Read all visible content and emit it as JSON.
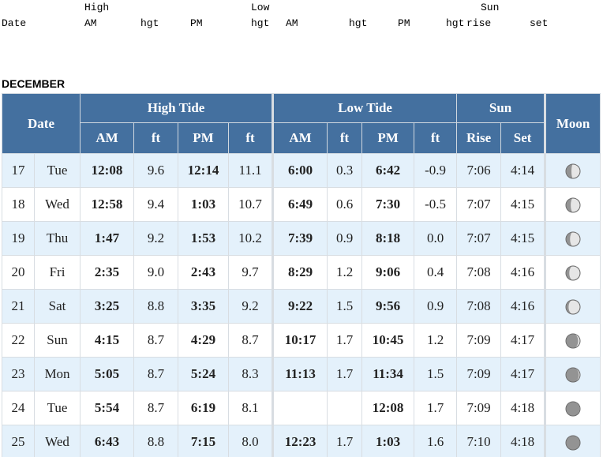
{
  "legacy_header": {
    "group_labels": [
      "High",
      "Low",
      "Sun"
    ],
    "column_labels": [
      "Date",
      "AM",
      "hgt",
      "PM",
      "hgt",
      "AM",
      "hgt",
      "PM",
      "hgt",
      "rise",
      "set"
    ]
  },
  "month": "DECEMBER",
  "table": {
    "groups": [
      "Date",
      "High Tide",
      "Low Tide",
      "Sun",
      "Moon"
    ],
    "subheaders": [
      "AM",
      "ft",
      "PM",
      "ft",
      "AM",
      "ft",
      "PM",
      "ft",
      "Rise",
      "Set"
    ],
    "rows": [
      [
        "17",
        "Tue",
        "12:08",
        "9.6",
        "12:14",
        "11.1",
        "6:00",
        "0.3",
        "6:42",
        "-0.9",
        "7:06",
        "4:14"
      ],
      [
        "18",
        "Wed",
        "12:58",
        "9.4",
        "1:03",
        "10.7",
        "6:49",
        "0.6",
        "7:30",
        "-0.5",
        "7:07",
        "4:15"
      ],
      [
        "19",
        "Thu",
        "1:47",
        "9.2",
        "1:53",
        "10.2",
        "7:39",
        "0.9",
        "8:18",
        "0.0",
        "7:07",
        "4:15"
      ],
      [
        "20",
        "Fri",
        "2:35",
        "9.0",
        "2:43",
        "9.7",
        "8:29",
        "1.2",
        "9:06",
        "0.4",
        "7:08",
        "4:16"
      ],
      [
        "21",
        "Sat",
        "3:25",
        "8.8",
        "3:35",
        "9.2",
        "9:22",
        "1.5",
        "9:56",
        "0.9",
        "7:08",
        "4:16"
      ],
      [
        "22",
        "Sun",
        "4:15",
        "8.7",
        "4:29",
        "8.7",
        "10:17",
        "1.7",
        "10:45",
        "1.2",
        "7:09",
        "4:17"
      ],
      [
        "23",
        "Mon",
        "5:05",
        "8.7",
        "5:24",
        "8.3",
        "11:13",
        "1.7",
        "11:34",
        "1.5",
        "7:09",
        "4:17"
      ],
      [
        "24",
        "Tue",
        "5:54",
        "8.7",
        "6:19",
        "8.1",
        null,
        null,
        "12:08",
        "1.7",
        "7:09",
        "4:18"
      ],
      [
        "25",
        "Wed",
        "6:43",
        "8.8",
        "7:15",
        "8.0",
        "12:23",
        "1.7",
        "1:03",
        "1.6",
        "7:10",
        "4:18"
      ]
    ]
  }
}
